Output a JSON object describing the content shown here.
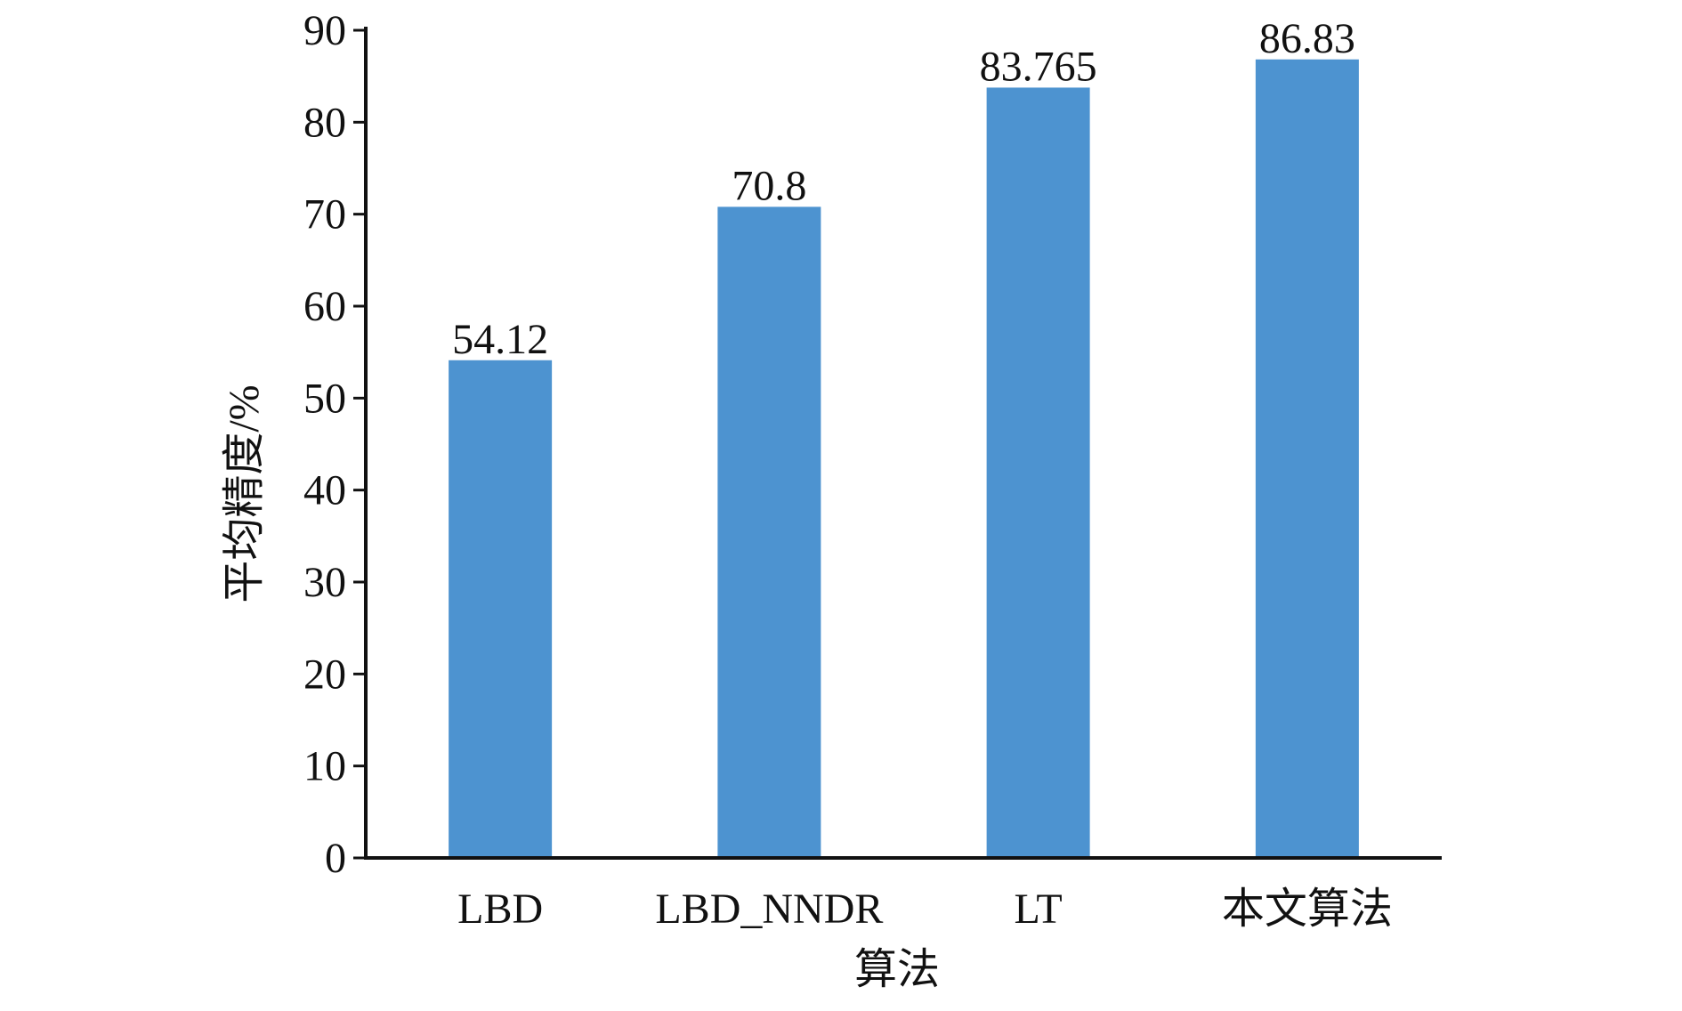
{
  "chart_data": {
    "type": "bar",
    "categories": [
      "LBD",
      "LBD_NNDR",
      "LT",
      "本文算法"
    ],
    "values": [
      54.12,
      70.8,
      83.765,
      86.83
    ],
    "data_labels": [
      "54.12",
      "70.8",
      "83.765",
      "86.83"
    ],
    "title": "",
    "xlabel": "算法",
    "ylabel": "平均精度/%",
    "ylim": [
      0,
      90
    ],
    "yticks": [
      "0",
      "10",
      "20",
      "30",
      "40",
      "50",
      "60",
      "70",
      "80",
      "90"
    ],
    "grid": false,
    "legend": "none",
    "colors": {
      "bar": "#4d93d0",
      "axis": "#111111"
    }
  }
}
